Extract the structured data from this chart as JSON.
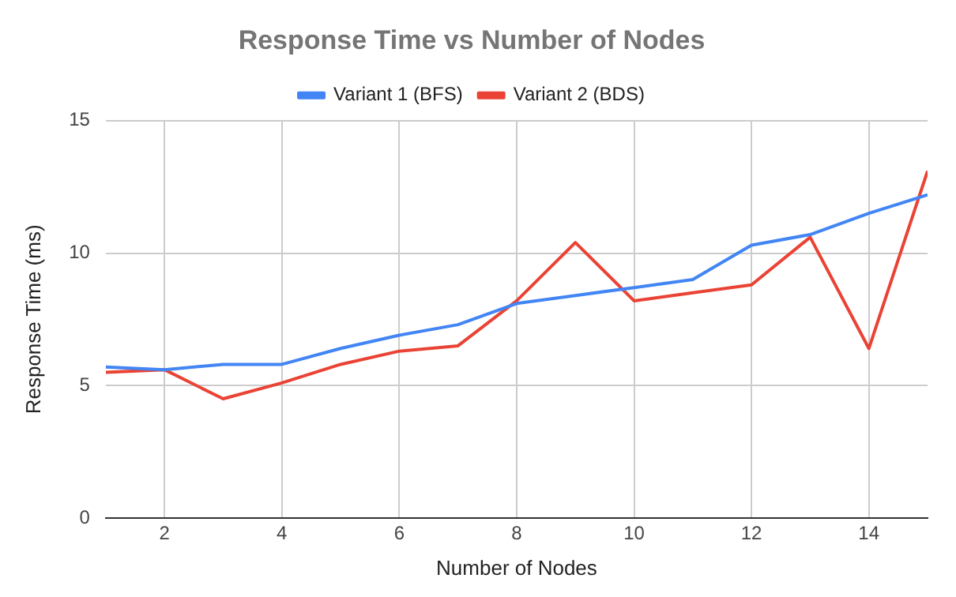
{
  "chart_data": {
    "type": "line",
    "title": "Response Time vs Number of Nodes",
    "xlabel": "Number of Nodes",
    "ylabel": "Response Time (ms)",
    "x": [
      1,
      2,
      3,
      4,
      5,
      6,
      7,
      8,
      9,
      10,
      11,
      12,
      13,
      14,
      15
    ],
    "series": [
      {
        "name": "Variant 1 (BFS)",
        "color": "#4285f4",
        "values": [
          5.7,
          5.6,
          5.8,
          5.8,
          6.4,
          6.9,
          7.3,
          8.1,
          8.4,
          8.7,
          9.0,
          10.3,
          10.7,
          11.5,
          12.2
        ]
      },
      {
        "name": "Variant 2 (BDS)",
        "color": "#ea4335",
        "values": [
          5.5,
          5.6,
          4.5,
          5.1,
          5.8,
          6.3,
          6.5,
          8.2,
          10.4,
          8.2,
          8.5,
          8.8,
          10.6,
          6.4,
          13.1
        ]
      }
    ],
    "xlim": [
      1,
      15
    ],
    "xticks": [
      2,
      4,
      6,
      8,
      10,
      12,
      14
    ],
    "ylim": [
      0,
      15
    ],
    "yticks": [
      0,
      5,
      10,
      15
    ],
    "grid": true,
    "legend": "top",
    "marker": "none",
    "line_style": "solid"
  }
}
